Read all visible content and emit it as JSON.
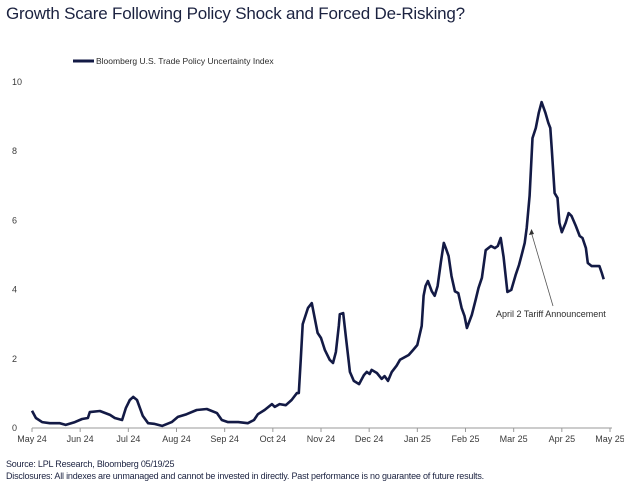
{
  "title": "Growth Scare Following Policy Shock and Forced De-Risking?",
  "footer": {
    "source": "Source: LPL Research, Bloomberg 05/19/25",
    "disclosures": "Disclosures: All indexes are unmanaged and cannot be invested in directly. Past performance is no guarantee of future results."
  },
  "colors": {
    "line": "#131a45",
    "axis": "#9a9a9a"
  },
  "chart_data": {
    "type": "line",
    "title": "Growth Scare Following Policy Shock and Forced De-Risking?",
    "xlabel": "",
    "ylabel": "",
    "ylim": [
      0,
      10
    ],
    "yticks": [
      0,
      2,
      4,
      6,
      8,
      10
    ],
    "xlim": [
      0,
      12.2
    ],
    "x_tick_labels": [
      "May 24",
      "Jun 24",
      "Jul 24",
      "Aug 24",
      "Sep 24",
      "Oct 24",
      "Nov 24",
      "Dec 24",
      "Jan 25",
      "Feb 25",
      "Mar 25",
      "Apr 25",
      "May 25"
    ],
    "grid": false,
    "legend": {
      "position": "top-left",
      "entries": [
        "Bloomberg U.S. Trade Policy Uncertainty Index"
      ]
    },
    "annotations": [
      {
        "text": "April 2 Tariff Announcement",
        "x": 10.37,
        "y": 5.75
      }
    ],
    "series": [
      {
        "name": "Bloomberg U.S. Trade Policy Uncertainty Index",
        "x": [
          0,
          0.08,
          0.21,
          0.37,
          0.58,
          0.7,
          0.89,
          1.04,
          1.16,
          1.2,
          1.41,
          1.62,
          1.72,
          1.87,
          1.95,
          2.03,
          2.1,
          2.18,
          2.24,
          2.3,
          2.41,
          2.53,
          2.7,
          2.9,
          3.03,
          3.21,
          3.42,
          3.63,
          3.84,
          3.94,
          4.07,
          4.28,
          4.48,
          4.61,
          4.69,
          4.83,
          4.98,
          5.04,
          5.14,
          5.27,
          5.39,
          5.5,
          5.54,
          5.58,
          5.62,
          5.73,
          5.81,
          5.87,
          5.93,
          6.0,
          6.08,
          6.18,
          6.25,
          6.31,
          6.37,
          6.39,
          6.46,
          6.52,
          6.58,
          6.6,
          6.68,
          6.79,
          6.89,
          6.95,
          7.01,
          7.05,
          7.16,
          7.26,
          7.32,
          7.39,
          7.47,
          7.57,
          7.64,
          7.74,
          7.82,
          7.91,
          8.0,
          8.09,
          8.13,
          8.17,
          8.22,
          8.3,
          8.36,
          8.42,
          8.49,
          8.55,
          8.59,
          8.65,
          8.71,
          8.78,
          8.85,
          8.92,
          8.98,
          9.03,
          9.13,
          9.21,
          9.27,
          9.34,
          9.42,
          9.53,
          9.61,
          9.67,
          9.73,
          9.79,
          9.87,
          9.95,
          10.04,
          10.11,
          10.17,
          10.23,
          10.27,
          10.33,
          10.39,
          10.46,
          10.52,
          10.58,
          10.66,
          10.72,
          10.76,
          10.79,
          10.85,
          10.91,
          10.95,
          11.0,
          11.08,
          11.14,
          11.2,
          11.29,
          11.37,
          11.43,
          11.5,
          11.54,
          11.62,
          11.78,
          11.83,
          11.87
        ],
        "y": [
          0.5,
          0.29,
          0.17,
          0.14,
          0.14,
          0.09,
          0.17,
          0.26,
          0.29,
          0.46,
          0.49,
          0.38,
          0.29,
          0.23,
          0.58,
          0.81,
          0.9,
          0.81,
          0.58,
          0.35,
          0.14,
          0.12,
          0.06,
          0.17,
          0.32,
          0.4,
          0.52,
          0.55,
          0.43,
          0.23,
          0.17,
          0.17,
          0.14,
          0.23,
          0.4,
          0.52,
          0.69,
          0.61,
          0.69,
          0.66,
          0.81,
          1.01,
          1.01,
          2.0,
          3.0,
          3.47,
          3.61,
          3.18,
          2.75,
          2.6,
          2.25,
          1.97,
          1.88,
          2.2,
          2.95,
          3.29,
          3.32,
          2.6,
          1.88,
          1.62,
          1.36,
          1.27,
          1.53,
          1.62,
          1.56,
          1.68,
          1.59,
          1.42,
          1.5,
          1.36,
          1.62,
          1.8,
          1.97,
          2.05,
          2.11,
          2.25,
          2.4,
          2.95,
          3.82,
          4.1,
          4.25,
          3.95,
          3.82,
          4.1,
          4.8,
          5.35,
          5.2,
          4.97,
          4.39,
          3.95,
          3.9,
          3.47,
          3.24,
          2.89,
          3.27,
          3.7,
          4.05,
          4.34,
          5.14,
          5.26,
          5.2,
          5.26,
          5.49,
          4.94,
          3.93,
          3.99,
          4.42,
          4.71,
          5.03,
          5.35,
          5.78,
          6.71,
          8.38,
          8.67,
          9.1,
          9.42,
          9.1,
          8.82,
          8.67,
          8.09,
          6.79,
          6.65,
          5.93,
          5.66,
          5.93,
          6.21,
          6.13,
          5.84,
          5.55,
          5.49,
          5.2,
          4.77,
          4.68,
          4.68,
          4.48,
          4.3
        ]
      }
    ]
  }
}
